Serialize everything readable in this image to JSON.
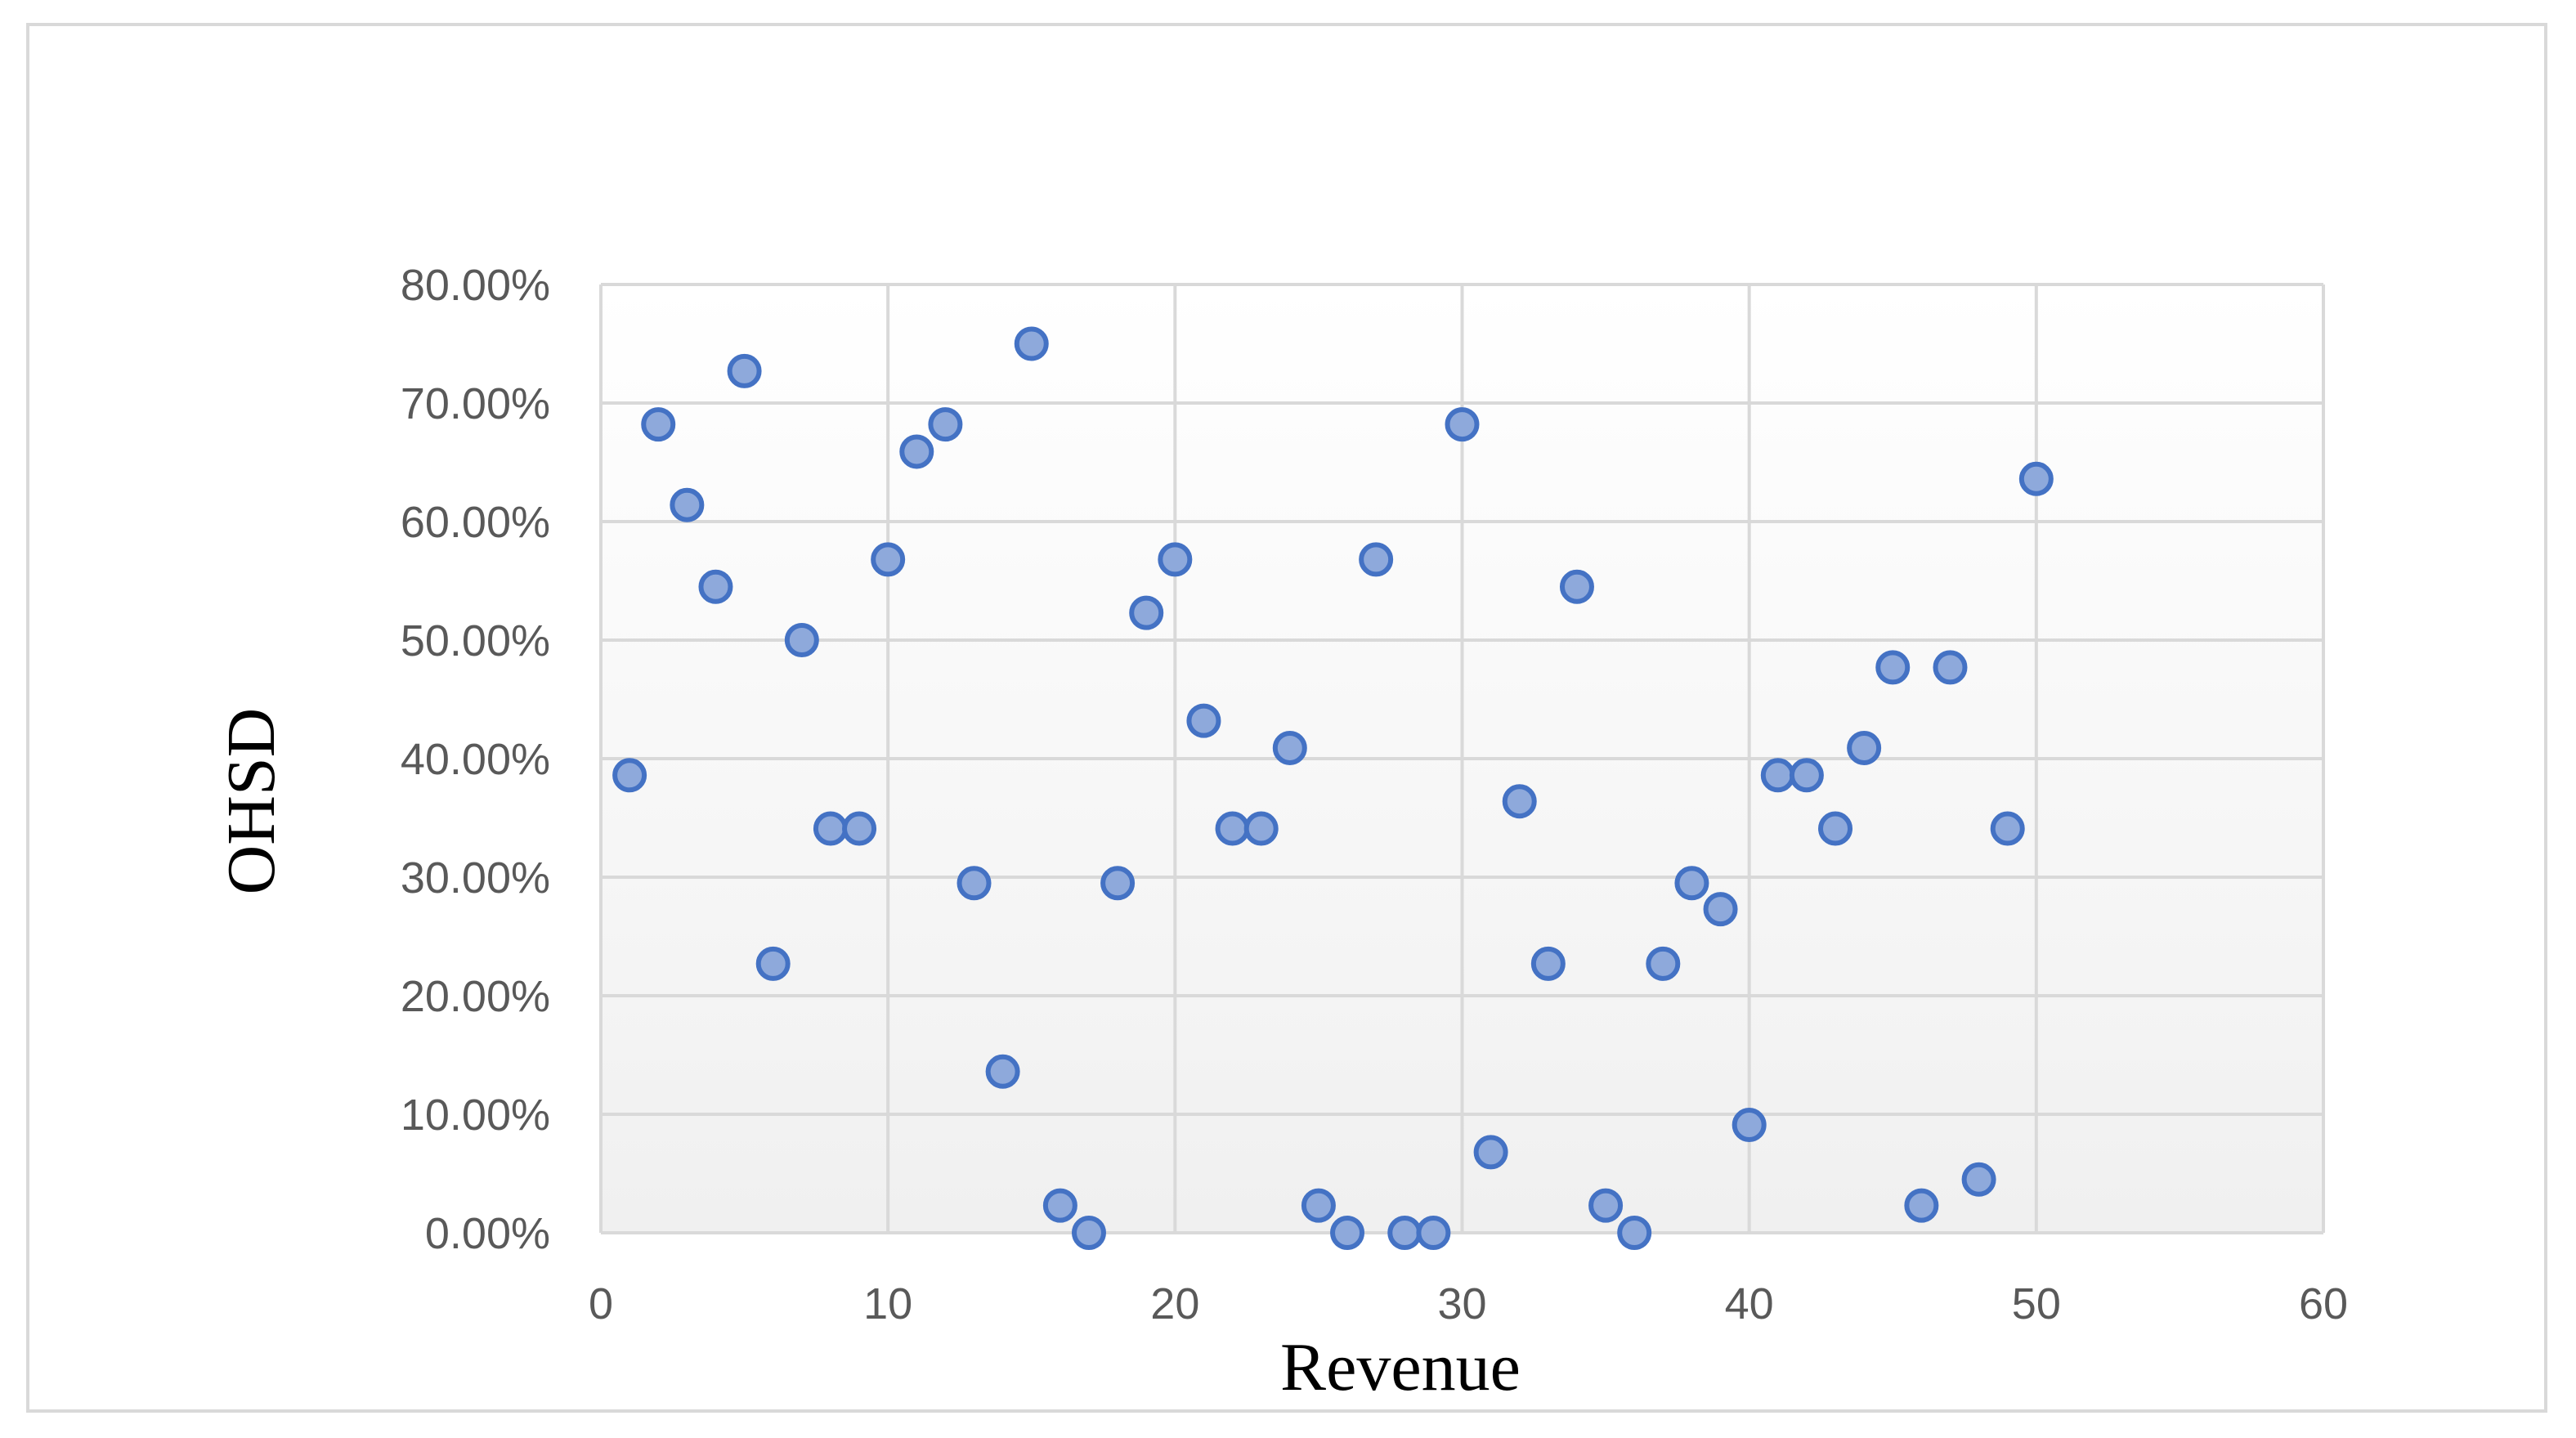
{
  "chart_data": {
    "type": "scatter",
    "title": "",
    "xlabel": "Revenue",
    "ylabel": "OHSD",
    "xlim": [
      0,
      60
    ],
    "ylim": [
      0,
      0.8
    ],
    "x_ticks": [
      "0",
      "10",
      "20",
      "30",
      "40",
      "50",
      "60"
    ],
    "y_ticks": [
      "0.00%",
      "10.00%",
      "20.00%",
      "30.00%",
      "40.00%",
      "50.00%",
      "60.00%",
      "70.00%",
      "80.00%"
    ],
    "grid": true,
    "legend": "none",
    "marker_fill": "#8ea9db",
    "marker_stroke": "#4472c4",
    "series": [
      {
        "points": [
          [
            1,
            0.386
          ],
          [
            2,
            0.682
          ],
          [
            3,
            0.614
          ],
          [
            4,
            0.545
          ],
          [
            5,
            0.727
          ],
          [
            6,
            0.227
          ],
          [
            7,
            0.5
          ],
          [
            8,
            0.341
          ],
          [
            9,
            0.341
          ],
          [
            10,
            0.568
          ],
          [
            11,
            0.659
          ],
          [
            12,
            0.682
          ],
          [
            13,
            0.295
          ],
          [
            14,
            0.136
          ],
          [
            15,
            0.75
          ],
          [
            16,
            0.023
          ],
          [
            17,
            0.0
          ],
          [
            18,
            0.295
          ],
          [
            19,
            0.523
          ],
          [
            20,
            0.568
          ],
          [
            21,
            0.432
          ],
          [
            22,
            0.341
          ],
          [
            23,
            0.341
          ],
          [
            24,
            0.409
          ],
          [
            25,
            0.023
          ],
          [
            26,
            0.0
          ],
          [
            27,
            0.568
          ],
          [
            28,
            0.0
          ],
          [
            29,
            0.0
          ],
          [
            30,
            0.682
          ],
          [
            31,
            0.068
          ],
          [
            32,
            0.364
          ],
          [
            33,
            0.227
          ],
          [
            34,
            0.545
          ],
          [
            35,
            0.023
          ],
          [
            36,
            0.0
          ],
          [
            37,
            0.227
          ],
          [
            38,
            0.295
          ],
          [
            39,
            0.273
          ],
          [
            40,
            0.091
          ],
          [
            41,
            0.386
          ],
          [
            42,
            0.386
          ],
          [
            43,
            0.341
          ],
          [
            44,
            0.409
          ],
          [
            45,
            0.477
          ],
          [
            46,
            0.023
          ],
          [
            47,
            0.477
          ],
          [
            48,
            0.045
          ],
          [
            49,
            0.341
          ],
          [
            50,
            0.636
          ]
        ]
      }
    ]
  }
}
